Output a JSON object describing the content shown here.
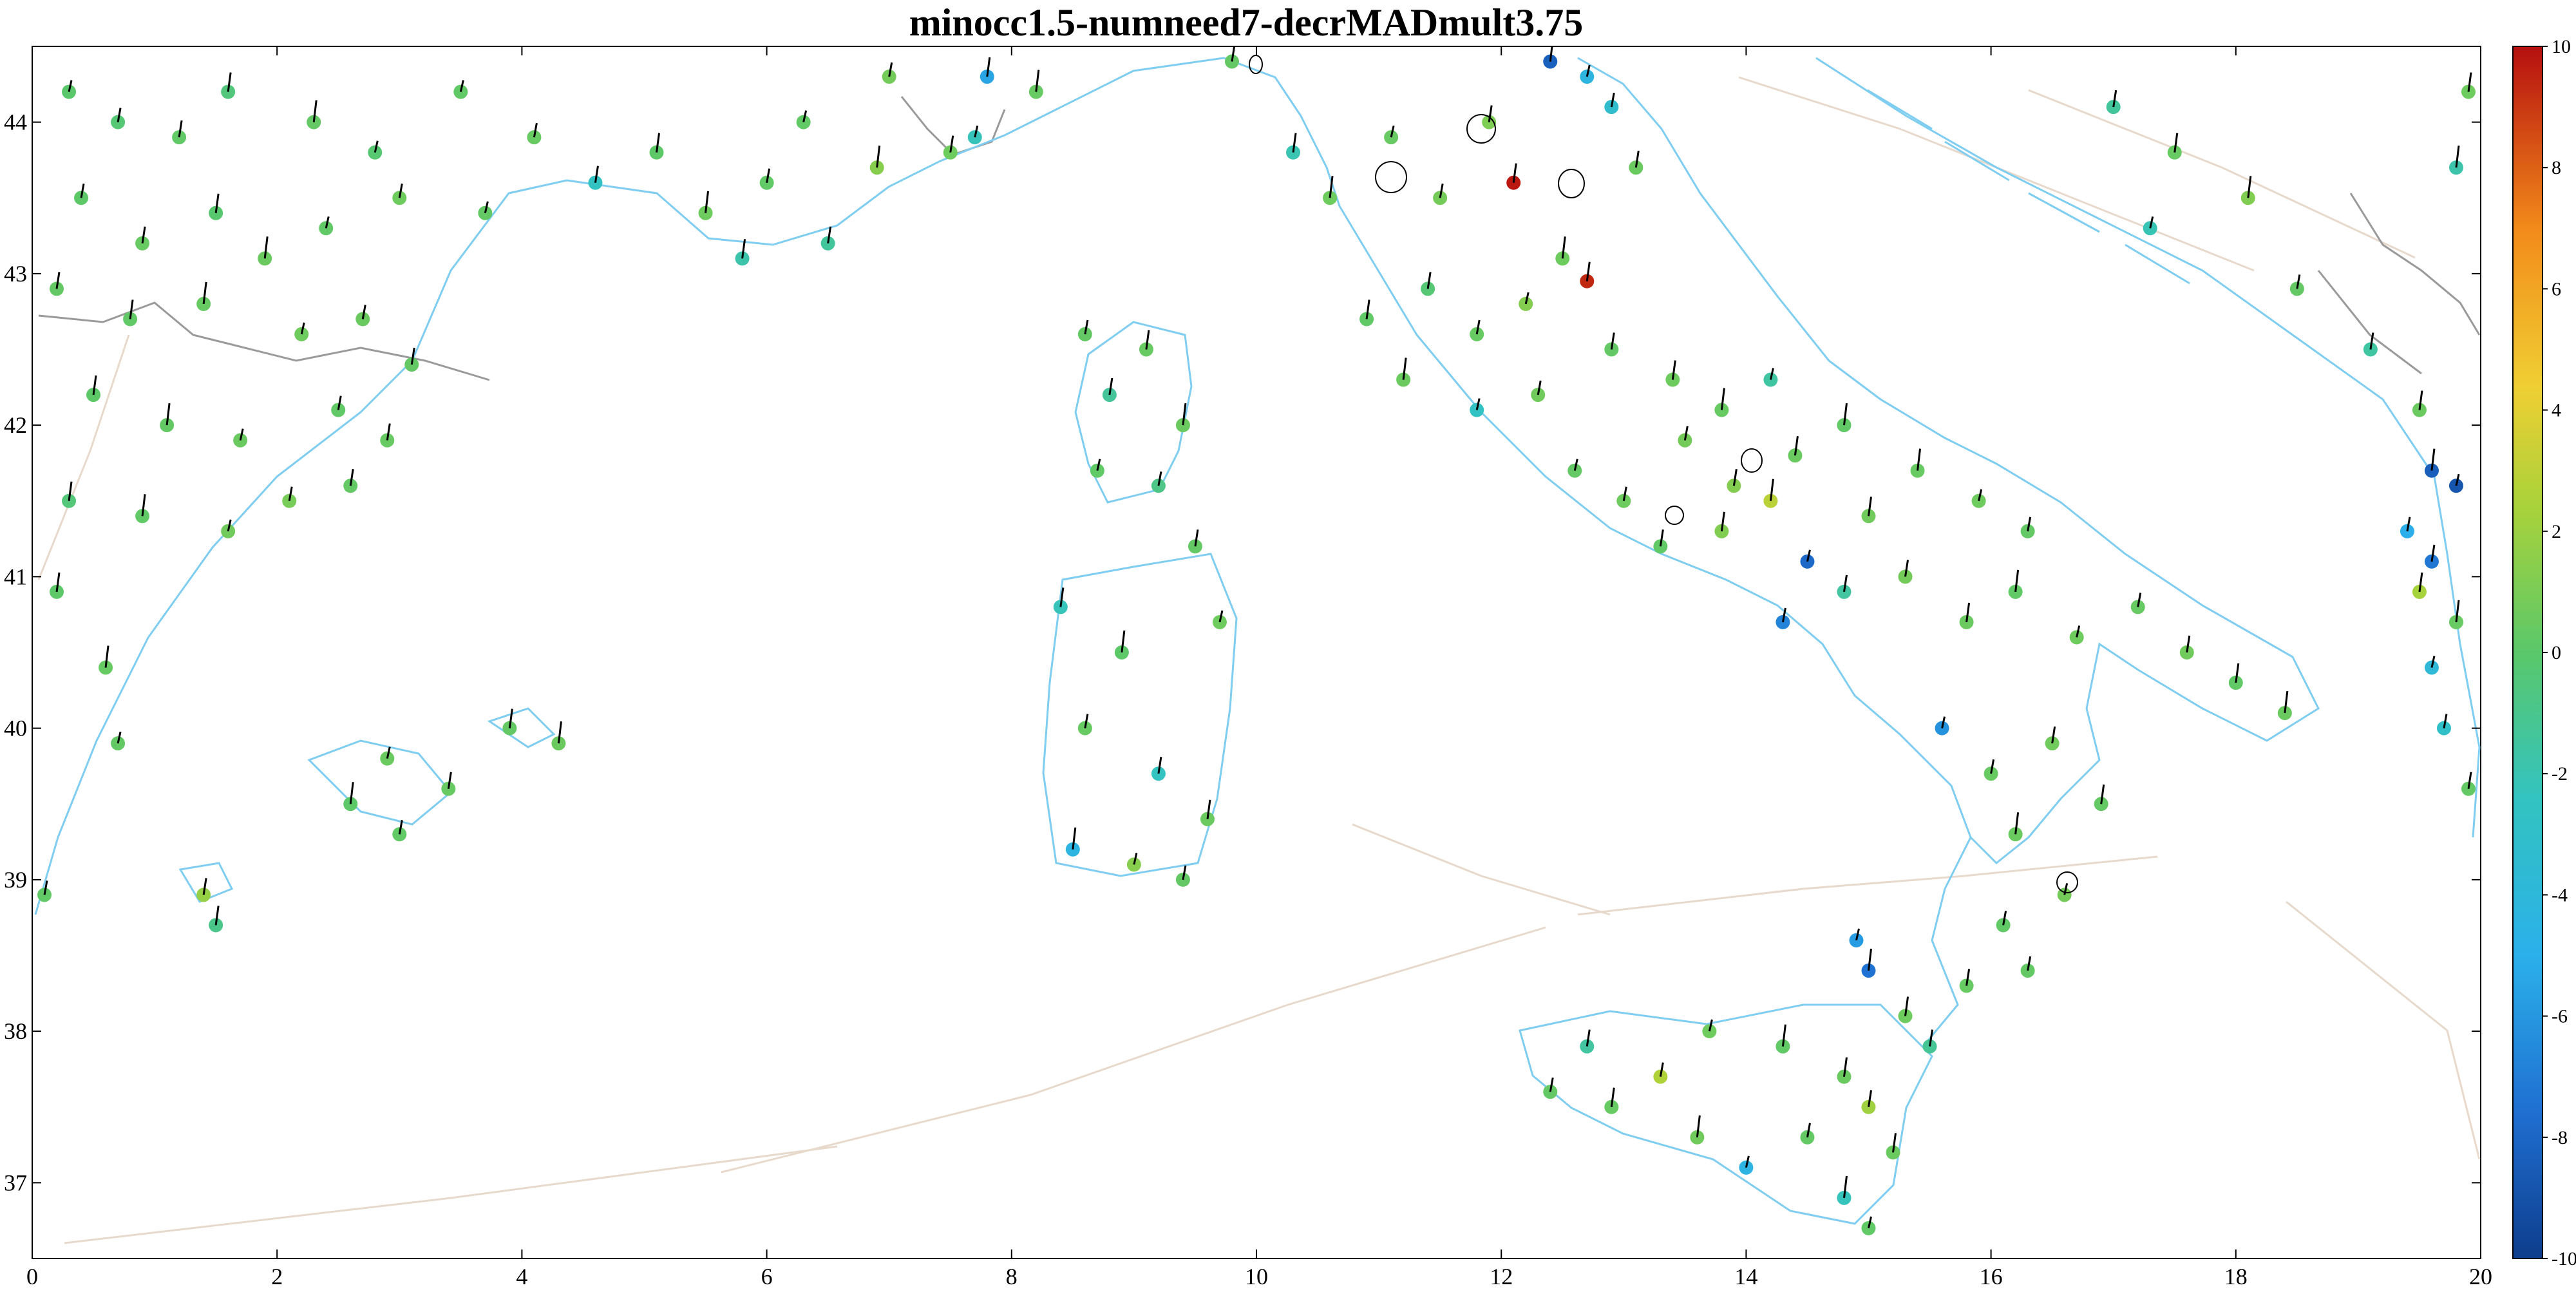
{
  "title": "minocc1.5-numneed7-decrMADmult3.75",
  "chart_data": {
    "type": "scatter",
    "title": "minocc1.5-numneed7-decrMADmult3.75",
    "xlim": [
      0,
      20
    ],
    "ylim": [
      36.5,
      44.5
    ],
    "x_ticks": [
      "0",
      "2",
      "4",
      "6",
      "8",
      "10",
      "12",
      "14",
      "16",
      "18",
      "20"
    ],
    "y_ticks": [
      "37",
      "38",
      "39",
      "40",
      "41",
      "42",
      "43",
      "44"
    ],
    "colorbar": {
      "range": [
        -10,
        10
      ],
      "ticks": [
        "10",
        "8",
        "6",
        "4",
        "2",
        "0",
        "-2",
        "-4",
        "-6",
        "-8",
        "-10"
      ],
      "colormap": "parula-like (dark blue → cyan → green → yellow → orange → dark red)"
    },
    "colors": {
      "coastline": "#7fcdf0",
      "borders": "#9a9a9a",
      "faults": "#e8d8c8",
      "vector_arrows": "#000000"
    },
    "series": [
      {
        "points": [
          {
            "x": 0.3,
            "y": 44.2,
            "v": 0
          },
          {
            "x": 0.7,
            "y": 44.0,
            "v": -0.3
          },
          {
            "x": 1.2,
            "y": 43.9,
            "v": 0.2
          },
          {
            "x": 1.6,
            "y": 44.2,
            "v": -0.5
          },
          {
            "x": 2.3,
            "y": 44.0,
            "v": 0.3
          },
          {
            "x": 2.8,
            "y": 43.8,
            "v": -0.2
          },
          {
            "x": 0.4,
            "y": 43.5,
            "v": 0.1
          },
          {
            "x": 0.9,
            "y": 43.2,
            "v": 0.4
          },
          {
            "x": 1.5,
            "y": 43.4,
            "v": -0.1
          },
          {
            "x": 1.9,
            "y": 43.1,
            "v": 0.5
          },
          {
            "x": 2.4,
            "y": 43.3,
            "v": 0.2
          },
          {
            "x": 3.0,
            "y": 43.5,
            "v": 0.6
          },
          {
            "x": 0.2,
            "y": 42.9,
            "v": 0.3
          },
          {
            "x": 0.8,
            "y": 42.7,
            "v": 0.2
          },
          {
            "x": 1.4,
            "y": 42.8,
            "v": 0.4
          },
          {
            "x": 2.2,
            "y": 42.6,
            "v": 0.6
          },
          {
            "x": 2.7,
            "y": 42.7,
            "v": 0.5
          },
          {
            "x": 3.1,
            "y": 42.4,
            "v": 0.3
          },
          {
            "x": 0.5,
            "y": 42.2,
            "v": 0.1
          },
          {
            "x": 1.1,
            "y": 42.0,
            "v": 0.3
          },
          {
            "x": 1.7,
            "y": 41.9,
            "v": 0.5
          },
          {
            "x": 2.5,
            "y": 42.1,
            "v": 0.2
          },
          {
            "x": 2.9,
            "y": 41.9,
            "v": 0.4
          },
          {
            "x": 0.3,
            "y": 41.5,
            "v": -0.4
          },
          {
            "x": 0.9,
            "y": 41.4,
            "v": 0.2
          },
          {
            "x": 1.6,
            "y": 41.3,
            "v": 0.7
          },
          {
            "x": 2.1,
            "y": 41.5,
            "v": 0.9
          },
          {
            "x": 2.6,
            "y": 41.6,
            "v": 0.3
          },
          {
            "x": 0.2,
            "y": 40.9,
            "v": 0.1
          },
          {
            "x": 0.6,
            "y": 40.4,
            "v": 0.4
          },
          {
            "x": 0.7,
            "y": 39.9,
            "v": 0.3
          },
          {
            "x": 0.1,
            "y": 38.9,
            "v": 0.2
          },
          {
            "x": 1.4,
            "y": 38.9,
            "v": 1.8
          },
          {
            "x": 1.5,
            "y": 38.7,
            "v": -0.9
          },
          {
            "x": 2.6,
            "y": 39.5,
            "v": 0.1
          },
          {
            "x": 2.9,
            "y": 39.8,
            "v": 0.5
          },
          {
            "x": 3.0,
            "y": 39.3,
            "v": 0.2
          },
          {
            "x": 3.4,
            "y": 39.6,
            "v": 0.4
          },
          {
            "x": 3.9,
            "y": 40.0,
            "v": 0.3
          },
          {
            "x": 4.3,
            "y": 39.9,
            "v": 0.5
          },
          {
            "x": 3.5,
            "y": 44.2,
            "v": 0.2
          },
          {
            "x": 4.1,
            "y": 43.9,
            "v": 0.4
          },
          {
            "x": 4.6,
            "y": 43.6,
            "v": -2.5
          },
          {
            "x": 5.1,
            "y": 43.8,
            "v": 0.1
          },
          {
            "x": 5.5,
            "y": 43.4,
            "v": 0.6
          },
          {
            "x": 3.7,
            "y": 43.4,
            "v": 0.3
          },
          {
            "x": 6.0,
            "y": 43.6,
            "v": 0.2
          },
          {
            "x": 6.5,
            "y": 43.2,
            "v": -1.4
          },
          {
            "x": 5.8,
            "y": 43.1,
            "v": -1.8
          },
          {
            "x": 6.9,
            "y": 43.7,
            "v": 1.4
          },
          {
            "x": 6.3,
            "y": 44.0,
            "v": 0.2
          },
          {
            "x": 7.0,
            "y": 44.3,
            "v": 0.8
          },
          {
            "x": 7.5,
            "y": 43.8,
            "v": 0.6
          },
          {
            "x": 7.8,
            "y": 44.3,
            "v": -5.5
          },
          {
            "x": 8.2,
            "y": 44.2,
            "v": 0.4
          },
          {
            "x": 7.7,
            "y": 43.9,
            "v": -2.2
          },
          {
            "x": 8.6,
            "y": 42.6,
            "v": 0.3
          },
          {
            "x": 8.8,
            "y": 42.2,
            "v": -1.3
          },
          {
            "x": 9.1,
            "y": 42.5,
            "v": 0.4
          },
          {
            "x": 9.4,
            "y": 42.0,
            "v": 0.5
          },
          {
            "x": 8.7,
            "y": 41.7,
            "v": 0.2
          },
          {
            "x": 9.2,
            "y": 41.6,
            "v": -0.8
          },
          {
            "x": 9.5,
            "y": 41.2,
            "v": 0.3
          },
          {
            "x": 8.4,
            "y": 40.8,
            "v": -2.2
          },
          {
            "x": 8.9,
            "y": 40.5,
            "v": 0.1
          },
          {
            "x": 9.7,
            "y": 40.7,
            "v": 0.6
          },
          {
            "x": 8.6,
            "y": 40.0,
            "v": 0.4
          },
          {
            "x": 9.2,
            "y": 39.7,
            "v": -2.4
          },
          {
            "x": 9.6,
            "y": 39.4,
            "v": 0.5
          },
          {
            "x": 8.5,
            "y": 39.2,
            "v": -4.4
          },
          {
            "x": 9.0,
            "y": 39.1,
            "v": 1.4
          },
          {
            "x": 9.4,
            "y": 39.0,
            "v": 0.3
          },
          {
            "x": 9.8,
            "y": 44.4,
            "v": 0.3
          },
          {
            "x": 10.3,
            "y": 43.8,
            "v": -2.0
          },
          {
            "x": 10.6,
            "y": 43.5,
            "v": 0.6
          },
          {
            "x": 11.1,
            "y": 43.9,
            "v": 0.4
          },
          {
            "x": 11.5,
            "y": 43.5,
            "v": 0.8
          },
          {
            "x": 11.9,
            "y": 44.0,
            "v": 1.1
          },
          {
            "x": 12.1,
            "y": 43.6,
            "v": 9.8
          },
          {
            "x": 12.4,
            "y": 44.4,
            "v": -8.3
          },
          {
            "x": 12.7,
            "y": 44.3,
            "v": -4.3
          },
          {
            "x": 12.9,
            "y": 44.1,
            "v": -3.2
          },
          {
            "x": 13.1,
            "y": 43.7,
            "v": 0.5
          },
          {
            "x": 12.7,
            "y": 42.95,
            "v": 9.4
          },
          {
            "x": 12.5,
            "y": 43.1,
            "v": 0.6
          },
          {
            "x": 12.2,
            "y": 42.8,
            "v": 1.3
          },
          {
            "x": 11.8,
            "y": 42.6,
            "v": 0.4
          },
          {
            "x": 11.4,
            "y": 42.9,
            "v": -0.3
          },
          {
            "x": 10.9,
            "y": 42.7,
            "v": 0.2
          },
          {
            "x": 11.2,
            "y": 42.3,
            "v": 0.5
          },
          {
            "x": 11.8,
            "y": 42.1,
            "v": -2.6
          },
          {
            "x": 12.3,
            "y": 42.2,
            "v": 0.7
          },
          {
            "x": 12.9,
            "y": 42.5,
            "v": 0.3
          },
          {
            "x": 13.4,
            "y": 42.3,
            "v": 0.6
          },
          {
            "x": 13.8,
            "y": 42.1,
            "v": 0.4
          },
          {
            "x": 14.2,
            "y": 42.3,
            "v": -1.6
          },
          {
            "x": 13.5,
            "y": 41.9,
            "v": 0.8
          },
          {
            "x": 13.9,
            "y": 41.6,
            "v": 1.3
          },
          {
            "x": 14.4,
            "y": 41.8,
            "v": 0.5
          },
          {
            "x": 14.8,
            "y": 42.0,
            "v": 0.2
          },
          {
            "x": 12.6,
            "y": 41.7,
            "v": 0.3
          },
          {
            "x": 13.0,
            "y": 41.5,
            "v": 0.6
          },
          {
            "x": 13.3,
            "y": 41.2,
            "v": 0.2
          },
          {
            "x": 13.8,
            "y": 41.3,
            "v": 1.2
          },
          {
            "x": 14.2,
            "y": 41.5,
            "v": 2.9
          },
          {
            "x": 14.5,
            "y": 41.1,
            "v": -7.9
          },
          {
            "x": 14.3,
            "y": 40.7,
            "v": -6.8
          },
          {
            "x": 14.8,
            "y": 40.9,
            "v": -1.5
          },
          {
            "x": 15.0,
            "y": 41.4,
            "v": 0.7
          },
          {
            "x": 15.4,
            "y": 41.7,
            "v": 0.4
          },
          {
            "x": 15.9,
            "y": 41.5,
            "v": 0.6
          },
          {
            "x": 16.3,
            "y": 41.3,
            "v": 0.3
          },
          {
            "x": 15.3,
            "y": 41.0,
            "v": 0.8
          },
          {
            "x": 15.8,
            "y": 40.7,
            "v": 0.5
          },
          {
            "x": 16.2,
            "y": 40.9,
            "v": 0.2
          },
          {
            "x": 16.7,
            "y": 40.6,
            "v": 0.6
          },
          {
            "x": 17.2,
            "y": 40.8,
            "v": 0.4
          },
          {
            "x": 17.6,
            "y": 40.5,
            "v": 0.7
          },
          {
            "x": 18.0,
            "y": 40.3,
            "v": 0.2
          },
          {
            "x": 18.4,
            "y": 40.1,
            "v": 0.5
          },
          {
            "x": 15.6,
            "y": 40.0,
            "v": -6.2
          },
          {
            "x": 16.0,
            "y": 39.7,
            "v": 0.4
          },
          {
            "x": 16.5,
            "y": 39.9,
            "v": 0.7
          },
          {
            "x": 16.9,
            "y": 39.5,
            "v": 0.3
          },
          {
            "x": 16.2,
            "y": 39.3,
            "v": 0.5
          },
          {
            "x": 16.6,
            "y": 38.9,
            "v": 0.8
          },
          {
            "x": 16.1,
            "y": 38.7,
            "v": 0.2
          },
          {
            "x": 15.8,
            "y": 38.3,
            "v": 0.4
          },
          {
            "x": 15.3,
            "y": 38.1,
            "v": 0.6
          },
          {
            "x": 15.0,
            "y": 38.4,
            "v": -7.5
          },
          {
            "x": 14.9,
            "y": 38.6,
            "v": -5.8
          },
          {
            "x": 16.3,
            "y": 38.4,
            "v": 0.3
          },
          {
            "x": 15.5,
            "y": 37.9,
            "v": -1.2
          },
          {
            "x": 14.8,
            "y": 37.7,
            "v": 0.5
          },
          {
            "x": 14.3,
            "y": 37.9,
            "v": 0.2
          },
          {
            "x": 13.7,
            "y": 38.0,
            "v": 0.6
          },
          {
            "x": 13.3,
            "y": 37.7,
            "v": 2.6
          },
          {
            "x": 12.7,
            "y": 37.9,
            "v": -1.5
          },
          {
            "x": 12.9,
            "y": 37.5,
            "v": 0.4
          },
          {
            "x": 13.6,
            "y": 37.3,
            "v": 0.7
          },
          {
            "x": 14.0,
            "y": 37.1,
            "v": -4.5
          },
          {
            "x": 14.5,
            "y": 37.3,
            "v": 0.3
          },
          {
            "x": 15.0,
            "y": 37.5,
            "v": 2.1
          },
          {
            "x": 15.2,
            "y": 37.2,
            "v": 0.5
          },
          {
            "x": 14.8,
            "y": 36.9,
            "v": -2.3
          },
          {
            "x": 15.0,
            "y": 36.7,
            "v": 0.2
          },
          {
            "x": 12.4,
            "y": 37.6,
            "v": 0.3
          },
          {
            "x": 17.0,
            "y": 44.1,
            "v": -1.4
          },
          {
            "x": 17.5,
            "y": 43.8,
            "v": 0.4
          },
          {
            "x": 18.1,
            "y": 43.5,
            "v": 1.2
          },
          {
            "x": 17.3,
            "y": 43.3,
            "v": -2.1
          },
          {
            "x": 18.5,
            "y": 42.9,
            "v": 0.3
          },
          {
            "x": 19.1,
            "y": 42.5,
            "v": -1.6
          },
          {
            "x": 19.5,
            "y": 42.1,
            "v": 0.5
          },
          {
            "x": 19.6,
            "y": 41.7,
            "v": -8.4
          },
          {
            "x": 19.8,
            "y": 41.6,
            "v": -8.8
          },
          {
            "x": 19.4,
            "y": 41.3,
            "v": -5.1
          },
          {
            "x": 19.6,
            "y": 41.1,
            "v": -7.3
          },
          {
            "x": 19.5,
            "y": 40.9,
            "v": 2.3
          },
          {
            "x": 19.8,
            "y": 40.7,
            "v": 0.4
          },
          {
            "x": 19.6,
            "y": 40.4,
            "v": -3.8
          },
          {
            "x": 19.7,
            "y": 40.0,
            "v": -2.9
          },
          {
            "x": 19.9,
            "y": 39.6,
            "v": 0.3
          },
          {
            "x": 19.9,
            "y": 44.2,
            "v": 0.6
          },
          {
            "x": 19.8,
            "y": 43.7,
            "v": -1.8
          }
        ]
      }
    ]
  }
}
